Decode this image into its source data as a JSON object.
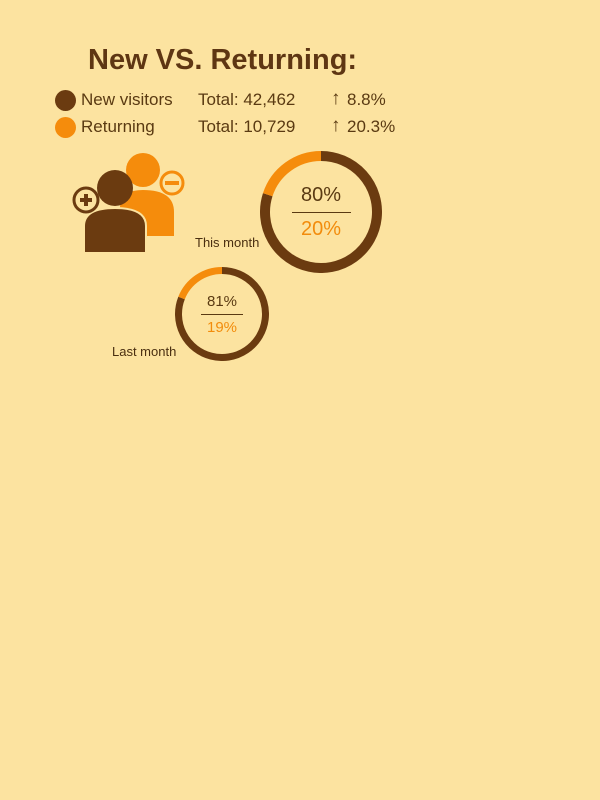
{
  "title": "New VS. Returning:",
  "legend": [
    {
      "name": "New visitors",
      "total": "Total: 42,462",
      "arrow": "↑",
      "change": "8.8%",
      "color": "#6b3b10"
    },
    {
      "name": "Returning",
      "total": "Total: 10,729",
      "arrow": "↑",
      "change": "20.3%",
      "color": "#f58c0c"
    }
  ],
  "icons": {
    "users": "users-add-remove-icon"
  },
  "colors": {
    "new": "#6b3b10",
    "returning": "#f58c0c",
    "background": "#fce3a0"
  },
  "chart_data": [
    {
      "type": "pie",
      "label": "This month",
      "categories": [
        "New visitors",
        "Returning"
      ],
      "values": [
        80,
        20
      ],
      "value_labels": [
        "80%",
        "20%"
      ]
    },
    {
      "type": "pie",
      "label": "Last month",
      "categories": [
        "New visitors",
        "Returning"
      ],
      "values": [
        81,
        19
      ],
      "value_labels": [
        "81%",
        "19%"
      ]
    }
  ]
}
